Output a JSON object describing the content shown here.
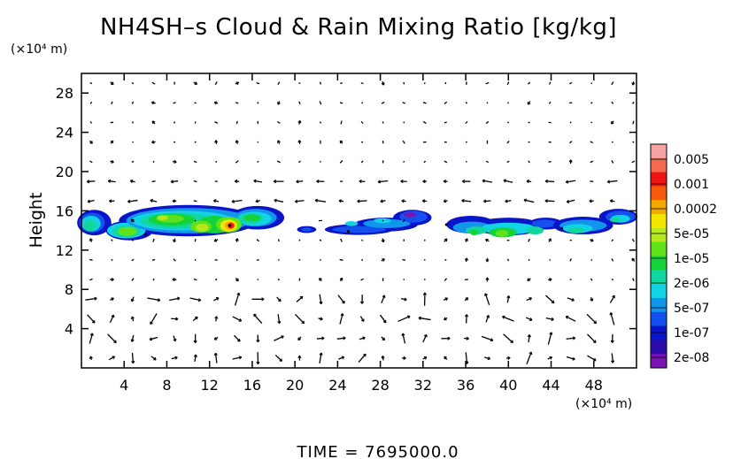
{
  "chart_data": {
    "type": "heatmap",
    "title": "NH4SH–s Cloud & Rain Mixing Ratio [kg/kg]",
    "xunit": "(×10⁴ m)",
    "yunit": "(×10⁴ m)",
    "xlabel": "",
    "ylabel": "Height",
    "xlim": [
      0,
      52
    ],
    "ylim": [
      0,
      30
    ],
    "xticks": [
      4,
      8,
      12,
      16,
      20,
      24,
      28,
      32,
      36,
      40,
      44,
      48
    ],
    "yticks": [
      4,
      8,
      12,
      16,
      20,
      24,
      28
    ],
    "colorbar": {
      "labels": [
        "0.005",
        "0.001",
        "0.0002",
        "5e-05",
        "1e-05",
        "2e-06",
        "5e-07",
        "1e-07",
        "2e-08"
      ],
      "colors": [
        "#f7a3a3",
        "#f26a4f",
        "#f01414",
        "#f55a0a",
        "#f5a800",
        "#f2e600",
        "#b6e81c",
        "#5fe21c",
        "#14d23a",
        "#12d6a0",
        "#12d2e6",
        "#1296ec",
        "#1450ee",
        "#0a14c8",
        "#2a0aa8",
        "#7a12b4"
      ]
    },
    "cloud_band": {
      "height_range": [
        13,
        16.5
      ],
      "segments": [
        {
          "x": [
            0,
            18.8
          ],
          "peak": "0.001",
          "peak_x": 14,
          "peak_y": 14.5
        },
        {
          "x": [
            20.3,
            22
          ],
          "peak": "1e-07"
        },
        {
          "x": [
            22.6,
            34.5
          ],
          "peak": "5e-07"
        },
        {
          "x": [
            34.6,
            45.2
          ],
          "peak": "5e-05"
        },
        {
          "x": [
            43.5,
            52
          ],
          "peak": "5e-06"
        }
      ]
    },
    "overlay": "wind vectors"
  },
  "footer": {
    "time_label": "TIME  =  7695000.0"
  }
}
